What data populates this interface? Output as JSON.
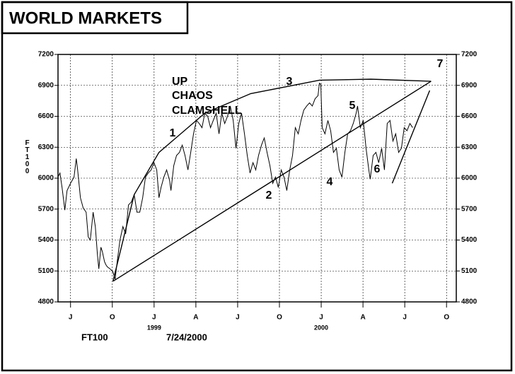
{
  "chart_data": {
    "type": "line",
    "title": "WORLD MARKETS",
    "y_label": "FT100",
    "footer": [
      "FT100",
      "7/24/2000"
    ],
    "annotations": [
      "UP",
      "CHAOS",
      "CLAMSHELL",
      "1",
      "2",
      "3",
      "4",
      "5",
      "6",
      "7"
    ],
    "year_labels": [
      {
        "text": "1999",
        "x": 12.5
      },
      {
        "text": "2000",
        "x": 24.5
      }
    ],
    "xlim": [
      5.6,
      34.2
    ],
    "xticks": [
      {
        "value": 6.5,
        "label": "J"
      },
      {
        "value": 9.5,
        "label": "O"
      },
      {
        "value": 12.5,
        "label": "J"
      },
      {
        "value": 15.5,
        "label": "A"
      },
      {
        "value": 18.5,
        "label": "J"
      },
      {
        "value": 21.5,
        "label": "O"
      },
      {
        "value": 24.5,
        "label": "J"
      },
      {
        "value": 27.5,
        "label": "A"
      },
      {
        "value": 30.5,
        "label": "J"
      },
      {
        "value": 33.5,
        "label": "O"
      }
    ],
    "ylim": [
      4800,
      7200
    ],
    "yticks": [
      4800,
      5100,
      5400,
      5700,
      6000,
      6300,
      6600,
      6900,
      7200
    ],
    "grid": true,
    "series": [
      {
        "name": "FT100",
        "color": "#000000",
        "x": [
          5.59,
          5.74,
          5.89,
          6.09,
          6.25,
          6.5,
          6.75,
          6.91,
          7.01,
          7.21,
          7.41,
          7.62,
          7.77,
          7.92,
          8.12,
          8.28,
          8.43,
          8.53,
          8.68,
          8.78,
          8.94,
          9.04,
          9.14,
          9.34,
          9.55,
          9.7,
          9.85,
          10.05,
          10.26,
          10.46,
          10.66,
          10.87,
          11.07,
          11.27,
          11.47,
          11.68,
          11.88,
          12.08,
          12.29,
          12.49,
          12.69,
          12.85,
          13.0,
          13.2,
          13.4,
          13.61,
          13.71,
          13.91,
          14.11,
          14.32,
          14.52,
          14.72,
          14.93,
          15.13,
          15.33,
          15.54,
          15.74,
          15.94,
          16.14,
          16.35,
          16.55,
          16.75,
          16.96,
          17.16,
          17.36,
          17.57,
          17.77,
          17.97,
          18.18,
          18.38,
          18.58,
          18.78,
          18.99,
          19.19,
          19.39,
          19.6,
          19.8,
          20.0,
          20.21,
          20.41,
          20.61,
          20.82,
          21.02,
          21.22,
          21.42,
          21.63,
          21.83,
          22.03,
          22.24,
          22.44,
          22.64,
          22.85,
          23.05,
          23.25,
          23.46,
          23.66,
          23.86,
          24.06,
          24.27,
          24.37,
          24.47,
          24.57,
          24.77,
          24.98,
          25.18,
          25.38,
          25.59,
          25.79,
          25.99,
          26.2,
          26.4,
          26.6,
          26.8,
          27.01,
          27.11,
          27.31,
          27.52,
          27.72,
          27.92,
          28.02,
          28.23,
          28.43,
          28.63,
          28.84,
          29.04,
          29.24,
          29.44,
          29.65,
          29.85,
          30.06,
          30.26,
          30.46,
          30.66,
          30.87,
          31.07
        ],
        "values": [
          6010,
          6050,
          5910,
          5690,
          5880,
          5950,
          6010,
          6190,
          6080,
          5810,
          5710,
          5670,
          5430,
          5400,
          5670,
          5530,
          5260,
          5120,
          5330,
          5290,
          5190,
          5160,
          5140,
          5120,
          5090,
          5020,
          5190,
          5400,
          5530,
          5460,
          5740,
          5770,
          5840,
          5670,
          5670,
          5810,
          6010,
          6050,
          6080,
          6150,
          6080,
          5810,
          5910,
          6010,
          6080,
          5980,
          5880,
          6120,
          6220,
          6250,
          6320,
          6220,
          6080,
          6250,
          6430,
          6560,
          6530,
          6490,
          6630,
          6600,
          6490,
          6560,
          6630,
          6430,
          6630,
          6530,
          6600,
          6700,
          6560,
          6290,
          6530,
          6630,
          6430,
          6220,
          6050,
          6150,
          6080,
          6220,
          6320,
          6390,
          6250,
          6120,
          5950,
          6010,
          5910,
          6080,
          6010,
          5880,
          6080,
          6220,
          6490,
          6430,
          6560,
          6660,
          6700,
          6730,
          6700,
          6770,
          6800,
          6920,
          6910,
          6490,
          6430,
          6560,
          6460,
          6250,
          6290,
          6080,
          6010,
          6250,
          6430,
          6460,
          6530,
          6630,
          6700,
          6490,
          6560,
          6290,
          6080,
          5990,
          6220,
          6250,
          6150,
          6290,
          6080,
          6530,
          6560,
          6360,
          6430,
          6250,
          6290,
          6490,
          6460,
          6530,
          6490
        ]
      }
    ],
    "overlays": [
      {
        "x": [
          9.55,
          11.07,
          12.85,
          16.14,
          19.44,
          24.37,
          28.07,
          32.39
        ],
        "y": [
          5000,
          5840,
          6250,
          6630,
          6820,
          6950,
          6960,
          6940
        ]
      },
      {
        "x": [
          9.55,
          32.39
        ],
        "y": [
          5000,
          6940
        ]
      },
      {
        "x": [
          29.6,
          32.29
        ],
        "y": [
          5950,
          6850
        ]
      }
    ]
  }
}
